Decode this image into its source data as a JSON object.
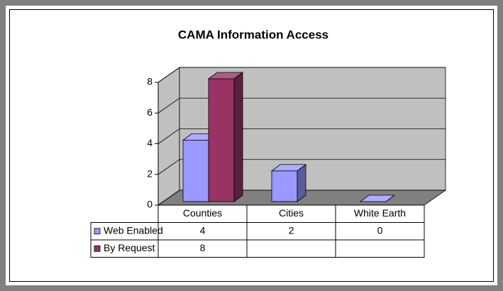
{
  "chart_data": {
    "type": "bar3d",
    "title": "CAMA Information Access",
    "categories": [
      "Counties",
      "Cities",
      "White Earth"
    ],
    "series": [
      {
        "name": "Web Enabled",
        "color": "#9999ff",
        "values": [
          4,
          2,
          0
        ]
      },
      {
        "name": "By Request",
        "color": "#993366",
        "values": [
          8,
          null,
          null
        ]
      }
    ],
    "ylim": [
      0,
      8
    ],
    "yticks": [
      0,
      2,
      4,
      6,
      8
    ],
    "grid": true,
    "data_table": true
  }
}
